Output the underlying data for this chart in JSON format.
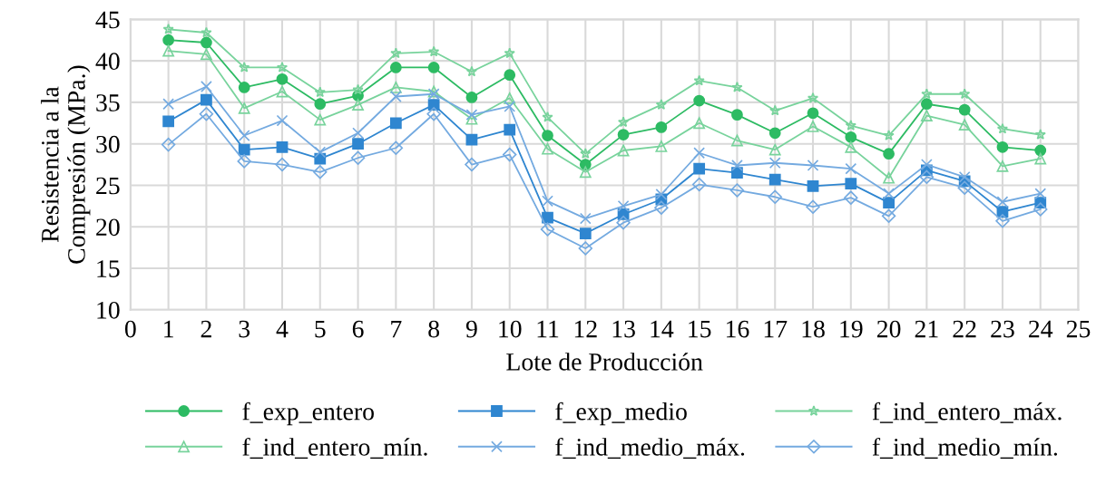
{
  "chart_data": {
    "type": "line",
    "xlabel": "Lote de Producción",
    "ylabel": "Resistencia a la\nCompresión (MPa.)",
    "x": [
      1,
      2,
      3,
      4,
      5,
      6,
      7,
      8,
      9,
      10,
      11,
      12,
      13,
      14,
      15,
      16,
      17,
      18,
      19,
      20,
      21,
      22,
      23,
      24
    ],
    "xlim": [
      0,
      25
    ],
    "xticks": [
      0,
      1,
      2,
      3,
      4,
      5,
      6,
      7,
      8,
      9,
      10,
      11,
      12,
      13,
      14,
      15,
      16,
      17,
      18,
      19,
      20,
      21,
      22,
      23,
      24,
      25
    ],
    "ylim": [
      10,
      45
    ],
    "yticks": [
      10,
      15,
      20,
      25,
      30,
      35,
      40,
      45
    ],
    "grid": true,
    "legend": "bottom",
    "line_style": "solid",
    "series": [
      {
        "name": "f_exp_entero",
        "color": "#2dbb63",
        "marker": "circle",
        "values": [
          42.5,
          42.2,
          36.8,
          37.8,
          34.8,
          35.8,
          39.2,
          39.2,
          35.6,
          38.3,
          31.0,
          27.5,
          31.1,
          32.0,
          35.2,
          33.5,
          31.3,
          33.7,
          30.8,
          28.8,
          34.8,
          34.1,
          29.6,
          29.2
        ]
      },
      {
        "name": "f_exp_medio",
        "color": "#2f86d0",
        "marker": "square",
        "values": [
          32.7,
          35.3,
          29.3,
          29.6,
          28.2,
          30.0,
          32.5,
          34.7,
          30.5,
          31.7,
          21.1,
          19.2,
          21.5,
          23.3,
          27.0,
          26.5,
          25.7,
          24.9,
          25.2,
          22.9,
          26.8,
          25.5,
          21.8,
          22.9
        ]
      },
      {
        "name": "f_ind_entero_máx.",
        "color": "#78d39c",
        "marker": "star",
        "values": [
          43.8,
          43.4,
          39.2,
          39.2,
          36.2,
          36.5,
          40.9,
          41.1,
          38.7,
          40.9,
          33.2,
          28.8,
          32.6,
          34.7,
          37.6,
          36.8,
          34.0,
          35.5,
          32.2,
          31.0,
          36.0,
          36.0,
          31.8,
          31.1
        ]
      },
      {
        "name": "f_ind_entero_mín.",
        "color": "#78d39c",
        "marker": "triangle",
        "values": [
          41.2,
          40.8,
          34.3,
          36.3,
          32.9,
          34.7,
          36.8,
          36.3,
          33.0,
          35.5,
          29.4,
          26.6,
          29.2,
          29.7,
          32.5,
          30.4,
          29.3,
          32.1,
          29.6,
          25.9,
          33.4,
          32.3,
          27.3,
          28.2
        ]
      },
      {
        "name": "f_ind_medio_máx.",
        "color": "#74aae0",
        "marker": "cross",
        "values": [
          34.8,
          36.9,
          31.0,
          32.8,
          29.0,
          31.3,
          35.7,
          36.0,
          33.5,
          34.5,
          23.1,
          21.0,
          22.5,
          23.9,
          28.9,
          27.4,
          27.7,
          27.4,
          27.0,
          24.0,
          27.5,
          26.0,
          23.0,
          24.0
        ]
      },
      {
        "name": "f_ind_medio_mín.",
        "color": "#74aae0",
        "marker": "diamond",
        "values": [
          29.9,
          33.6,
          27.9,
          27.5,
          26.6,
          28.3,
          29.5,
          33.6,
          27.5,
          28.7,
          19.7,
          17.4,
          20.5,
          22.3,
          25.1,
          24.4,
          23.6,
          22.4,
          23.5,
          21.3,
          26.0,
          24.7,
          20.7,
          22.1
        ]
      }
    ]
  }
}
